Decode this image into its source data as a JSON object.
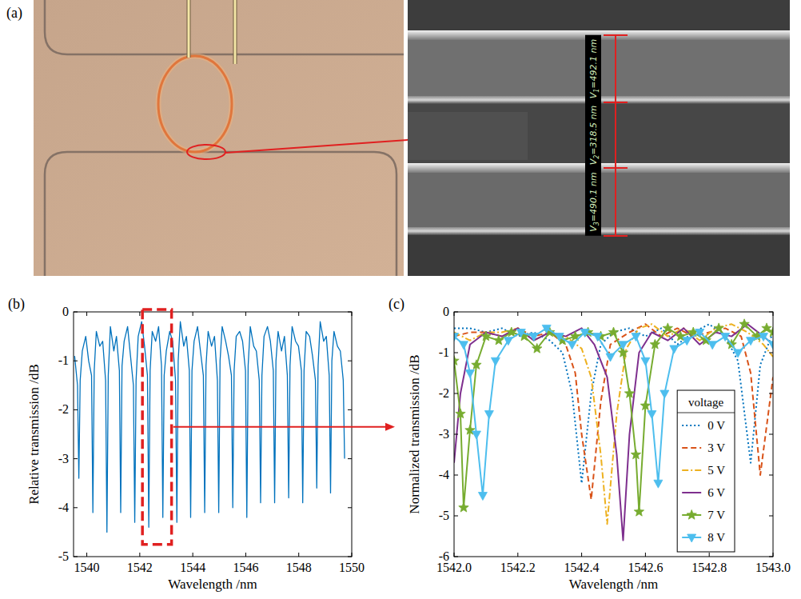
{
  "panel_a": {
    "label": "(a)",
    "measurements": [
      {
        "symbol": "V",
        "subscript": "1",
        "text": "=492.1 nm"
      },
      {
        "symbol": "V",
        "subscript": "2",
        "text": "=318.5 nm"
      },
      {
        "symbol": "V",
        "subscript": "3",
        "text": "=490.1 nm"
      }
    ]
  },
  "chart_data": [
    {
      "panel_label": "(b)",
      "type": "line",
      "xlabel": "Wavelength /nm",
      "ylabel": "Relative transmission /dB",
      "xlim": [
        1539.5,
        1550
      ],
      "ylim": [
        -5,
        0
      ],
      "xticks": [
        1540,
        1542,
        1544,
        1546,
        1548,
        1550
      ],
      "yticks": [
        -5,
        -4,
        -3,
        -2,
        -1,
        0
      ],
      "grid": false,
      "highlight_box": {
        "x0": 1542.1,
        "x1": 1543.2,
        "y0": -4.75,
        "y1": 0.05
      },
      "series": [
        {
          "color": "#0072bd",
          "line_style": "solid",
          "x": [
            1539.54,
            1539.65,
            1539.7,
            1539.75,
            1539.83,
            1539.96,
            1540.07,
            1540.18,
            1540.23,
            1540.28,
            1540.36,
            1540.49,
            1540.6,
            1540.71,
            1540.76,
            1540.81,
            1540.89,
            1541.02,
            1541.12,
            1541.23,
            1541.28,
            1541.33,
            1541.41,
            1541.54,
            1541.65,
            1541.76,
            1541.81,
            1541.86,
            1541.94,
            1542.07,
            1542.18,
            1542.29,
            1542.34,
            1542.39,
            1542.47,
            1542.6,
            1542.71,
            1542.82,
            1542.87,
            1542.92,
            1543.0,
            1543.13,
            1543.24,
            1543.35,
            1543.4,
            1543.45,
            1543.53,
            1543.66,
            1543.76,
            1543.87,
            1543.92,
            1543.97,
            1544.05,
            1544.18,
            1544.29,
            1544.4,
            1544.45,
            1544.5,
            1544.58,
            1544.71,
            1544.82,
            1544.93,
            1544.98,
            1545.03,
            1545.11,
            1545.24,
            1545.35,
            1545.46,
            1545.51,
            1545.56,
            1545.64,
            1545.77,
            1545.88,
            1545.99,
            1546.04,
            1546.09,
            1546.17,
            1546.3,
            1546.4,
            1546.51,
            1546.56,
            1546.61,
            1546.69,
            1546.82,
            1546.93,
            1547.04,
            1547.09,
            1547.14,
            1547.22,
            1547.35,
            1547.46,
            1547.57,
            1547.62,
            1547.67,
            1547.75,
            1547.88,
            1547.99,
            1548.1,
            1548.15,
            1548.2,
            1548.28,
            1548.41,
            1548.52,
            1548.63,
            1548.68,
            1548.73,
            1548.81,
            1548.94,
            1549.04,
            1549.15,
            1549.2,
            1549.25,
            1549.33,
            1549.46,
            1549.57,
            1549.68,
            1549.73
          ],
          "values": [
            -0.9,
            -1.5,
            -3.4,
            -1.4,
            -0.8,
            -0.5,
            -1.0,
            -1.3,
            -4.1,
            -1.2,
            -0.4,
            -0.7,
            -0.6,
            -1.4,
            -4.5,
            -1.3,
            -0.3,
            -0.8,
            -0.5,
            -1.2,
            -4.1,
            -1.1,
            -0.6,
            -0.3,
            -0.9,
            -1.5,
            -4.3,
            -1.4,
            -0.5,
            -0.2,
            -0.7,
            -1.3,
            -4.4,
            -1.2,
            -0.4,
            -0.6,
            -0.3,
            -1.1,
            -4.2,
            -1.3,
            -0.8,
            -0.4,
            -0.6,
            -1.4,
            -4.3,
            -1.0,
            -0.2,
            -0.7,
            -0.5,
            -1.2,
            -4.2,
            -1.2,
            -0.6,
            -0.3,
            -0.8,
            -1.3,
            -4.1,
            -1.1,
            -0.4,
            -0.7,
            -0.5,
            -1.4,
            -4.1,
            -1.0,
            -0.3,
            -0.6,
            -0.9,
            -1.3,
            -4.0,
            -1.2,
            -0.5,
            -0.4,
            -0.6,
            -1.2,
            -4.2,
            -1.1,
            -0.3,
            -0.7,
            -0.8,
            -1.4,
            -3.9,
            -1.3,
            -0.5,
            -0.3,
            -0.6,
            -1.2,
            -3.9,
            -1.0,
            -0.4,
            -0.8,
            -0.5,
            -1.3,
            -3.8,
            -1.1,
            -0.3,
            -0.6,
            -0.7,
            -1.2,
            -3.9,
            -1.2,
            -0.4,
            -0.5,
            -0.9,
            -1.4,
            -3.6,
            -1.1,
            -0.2,
            -0.6,
            -0.5,
            -1.3,
            -3.7,
            -1.0,
            -0.4,
            -0.7,
            -0.8,
            -1.4,
            -3.0
          ]
        }
      ]
    },
    {
      "panel_label": "(c)",
      "type": "line",
      "xlabel": "Wavelength /nm",
      "ylabel": "Normalized transmission /dB",
      "xlim": [
        1542,
        1543
      ],
      "ylim": [
        -6,
        0
      ],
      "xticks": [
        {
          "value": 1542,
          "label": "1542.0"
        },
        1542.2,
        1542.4,
        1542.6,
        1542.8,
        {
          "value": 1543,
          "label": "1543.0"
        }
      ],
      "yticks": [
        -6,
        -5,
        -4,
        -3,
        -2,
        -1,
        0
      ],
      "grid": false,
      "legend": "lower right",
      "legend_title": "voltage",
      "series": [
        {
          "name": "0 V",
          "color": "#0072bd",
          "line_style": "dotted",
          "marker": "none",
          "x": [
            1542.0,
            1542.05,
            1542.1,
            1542.15,
            1542.2,
            1542.25,
            1542.3,
            1542.34,
            1542.37,
            1542.4,
            1542.43,
            1542.46,
            1542.5,
            1542.55,
            1542.6,
            1542.65,
            1542.7,
            1542.75,
            1542.8,
            1542.85,
            1542.89,
            1542.93,
            1542.96,
            1543.0
          ],
          "values": [
            -0.4,
            -0.4,
            -0.5,
            -0.4,
            -0.6,
            -0.5,
            -0.7,
            -1.0,
            -2.0,
            -4.2,
            -2.0,
            -0.8,
            -0.5,
            -0.4,
            -0.6,
            -0.4,
            -0.8,
            -0.5,
            -0.3,
            -0.6,
            -1.2,
            -3.7,
            -1.3,
            -0.5
          ]
        },
        {
          "name": "3 V",
          "color": "#d95319",
          "line_style": "dashed",
          "marker": "none",
          "x": [
            1542.0,
            1542.05,
            1542.1,
            1542.15,
            1542.2,
            1542.25,
            1542.3,
            1542.35,
            1542.38,
            1542.4,
            1542.43,
            1542.46,
            1542.49,
            1542.55,
            1542.6,
            1542.65,
            1542.7,
            1542.75,
            1542.8,
            1542.85,
            1542.9,
            1542.93,
            1542.96,
            1543.0
          ],
          "values": [
            -0.6,
            -0.5,
            -0.5,
            -0.6,
            -0.4,
            -0.6,
            -0.5,
            -0.8,
            -1.5,
            -3.0,
            -4.6,
            -2.2,
            -0.8,
            -0.5,
            -0.3,
            -0.6,
            -0.4,
            -0.6,
            -0.5,
            -0.4,
            -0.6,
            -1.5,
            -4.0,
            -1.6
          ]
        },
        {
          "name": "5 V",
          "color": "#edb120",
          "line_style": "dashdot",
          "marker": "none",
          "x": [
            1542.0,
            1542.05,
            1542.1,
            1542.15,
            1542.2,
            1542.25,
            1542.3,
            1542.35,
            1542.4,
            1542.43,
            1542.46,
            1542.48,
            1542.51,
            1542.54,
            1542.58,
            1542.62,
            1542.67,
            1542.72,
            1542.77,
            1542.82,
            1542.87,
            1542.92,
            1542.97,
            1543.0
          ],
          "values": [
            -0.5,
            -0.7,
            -0.5,
            -0.5,
            -0.4,
            -0.7,
            -0.5,
            -0.6,
            -0.9,
            -1.6,
            -3.5,
            -5.2,
            -2.5,
            -0.9,
            -0.4,
            -0.3,
            -0.6,
            -0.4,
            -0.7,
            -0.4,
            -0.3,
            -0.5,
            -0.8,
            -1.1
          ]
        },
        {
          "name": "6 V",
          "color": "#7e2f8e",
          "line_style": "solid",
          "marker": "none",
          "x": [
            1542.0,
            1542.02,
            1542.05,
            1542.1,
            1542.15,
            1542.2,
            1542.25,
            1542.3,
            1542.35,
            1542.4,
            1542.44,
            1542.48,
            1542.51,
            1542.53,
            1542.55,
            1542.58,
            1542.62,
            1542.67,
            1542.72,
            1542.77,
            1542.82,
            1542.87,
            1542.92,
            1542.97,
            1543.0
          ],
          "values": [
            -3.7,
            -2.0,
            -0.8,
            -0.5,
            -0.6,
            -0.4,
            -0.7,
            -0.5,
            -0.6,
            -0.4,
            -0.8,
            -1.6,
            -3.5,
            -5.6,
            -3.0,
            -1.0,
            -0.5,
            -0.7,
            -0.4,
            -0.8,
            -0.5,
            -0.6,
            -0.3,
            -0.6,
            -0.8
          ]
        },
        {
          "name": "7 V",
          "color": "#77ac30",
          "line_style": "solid",
          "marker": "star",
          "x": [
            1542.0,
            1542.02,
            1542.03,
            1542.05,
            1542.07,
            1542.1,
            1542.14,
            1542.18,
            1542.22,
            1542.26,
            1542.3,
            1542.34,
            1542.38,
            1542.42,
            1542.46,
            1542.5,
            1542.53,
            1542.55,
            1542.57,
            1542.58,
            1542.6,
            1542.63,
            1542.67,
            1542.71,
            1542.75,
            1542.79,
            1542.83,
            1542.87,
            1542.91,
            1542.95,
            1542.98,
            1543.0
          ],
          "values": [
            -1.2,
            -2.5,
            -4.8,
            -2.9,
            -1.3,
            -0.6,
            -0.7,
            -0.5,
            -0.6,
            -0.9,
            -0.5,
            -0.7,
            -0.6,
            -0.5,
            -0.6,
            -0.5,
            -1.0,
            -2.0,
            -3.5,
            -4.9,
            -2.3,
            -0.8,
            -0.4,
            -0.6,
            -0.5,
            -0.7,
            -0.4,
            -0.8,
            -0.3,
            -0.6,
            -0.4,
            -0.5
          ]
        },
        {
          "name": "8 V",
          "color": "#4dbeee",
          "line_style": "solid",
          "marker": "triangle-down",
          "x": [
            1542.0,
            1542.03,
            1542.05,
            1542.07,
            1542.09,
            1542.11,
            1542.13,
            1542.17,
            1542.21,
            1542.25,
            1542.29,
            1542.33,
            1542.37,
            1542.41,
            1542.45,
            1542.49,
            1542.53,
            1542.57,
            1542.6,
            1542.62,
            1542.64,
            1542.66,
            1542.69,
            1542.73,
            1542.77,
            1542.81,
            1542.85,
            1542.89,
            1542.93,
            1542.97,
            1543.0
          ],
          "values": [
            -0.6,
            -0.8,
            -1.5,
            -3.0,
            -4.5,
            -2.5,
            -1.2,
            -0.7,
            -0.5,
            -0.6,
            -0.4,
            -0.6,
            -0.8,
            -0.5,
            -0.6,
            -1.1,
            -0.8,
            -0.6,
            -1.2,
            -2.5,
            -4.2,
            -2.0,
            -0.9,
            -0.7,
            -0.5,
            -0.8,
            -0.6,
            -1.0,
            -0.7,
            -0.6,
            -0.8
          ]
        }
      ]
    }
  ]
}
